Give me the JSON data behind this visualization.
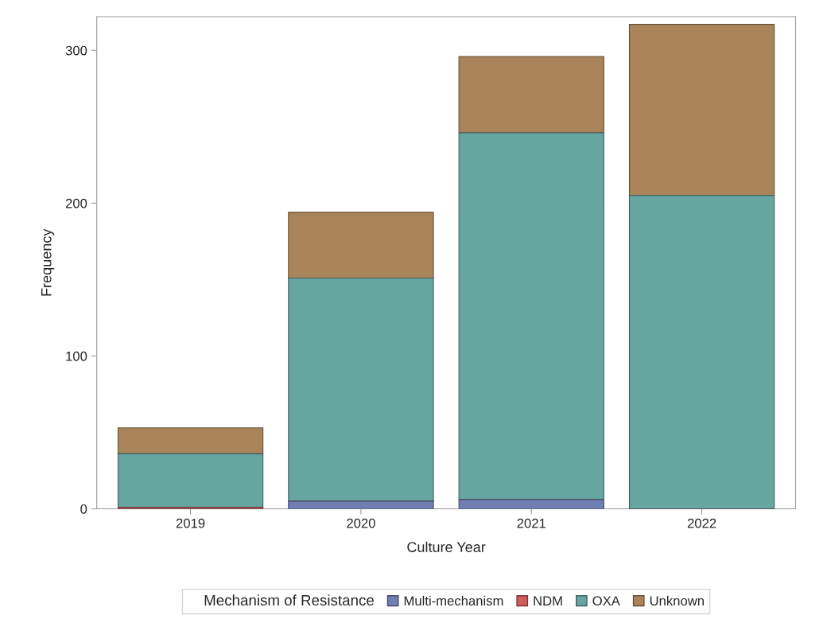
{
  "chart_data": {
    "type": "bar",
    "stacked": true,
    "xlabel": "Culture Year",
    "ylabel": "Frequency",
    "legend_title": "Mechanism of Resistance",
    "categories": [
      "2019",
      "2020",
      "2021",
      "2022"
    ],
    "series": [
      {
        "name": "Multi-mechanism",
        "color": "#6f7eb3",
        "values": [
          0,
          5,
          6,
          0
        ]
      },
      {
        "name": "NDM",
        "color": "#d05b5b",
        "values": [
          1,
          0,
          0,
          0
        ]
      },
      {
        "name": "OXA",
        "color": "#66a5a0",
        "values": [
          35,
          146,
          240,
          205
        ]
      },
      {
        "name": "Unknown",
        "color": "#a9845a",
        "values": [
          17,
          43,
          50,
          112
        ]
      }
    ],
    "ylim": [
      0,
      322
    ],
    "yticks": [
      0,
      100,
      200,
      300
    ],
    "grid": false,
    "legend": "bottom"
  }
}
